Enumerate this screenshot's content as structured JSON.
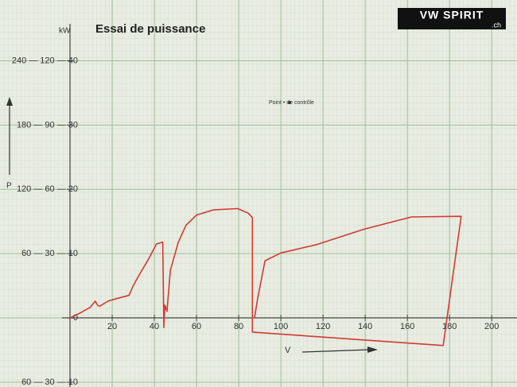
{
  "chart_data": {
    "type": "line",
    "title": "Essai de puissance",
    "unit": "kW",
    "ylabel": "P",
    "xlabel": "V",
    "annotation": "Point • de contrôle",
    "logo": [
      "VW SPIRIT",
      ".ch"
    ],
    "x": [
      0,
      5,
      9.4,
      12,
      13,
      14,
      18,
      22,
      28,
      30,
      33,
      37,
      41,
      44,
      44.5,
      45,
      46,
      47.6,
      51.3,
      55,
      60,
      68,
      79.5,
      84.5,
      86.5,
      86.5,
      177,
      185.5,
      162,
      139.5,
      117,
      100,
      92.5,
      89,
      87.5
    ],
    "series": [
      {
        "color": "#d23a32",
        "values": [
          0,
          0.8,
          1.6,
          2.6,
          2,
          1.8,
          2.6,
          3,
          3.5,
          5,
          6.8,
          9,
          11.5,
          11.8,
          -1.5,
          2,
          1,
          7.4,
          11.7,
          14.4,
          16,
          16.8,
          17,
          16.3,
          15.6,
          -2.2,
          -4.3,
          15.8,
          15.7,
          13.8,
          11.4,
          10.1,
          8.9,
          3,
          0
        ]
      }
    ],
    "xlim": [
      0,
      212
    ],
    "ylim": [
      -10.5,
      45
    ],
    "xticks": [
      20,
      40,
      60,
      80,
      100,
      120,
      140,
      160,
      180,
      200
    ],
    "yticks": [
      {
        "value": 40,
        "label": "240 — 120 — 40"
      },
      {
        "value": 30,
        "label": "180 — 90 — 30"
      },
      {
        "value": 20,
        "label": "120 — 60 — 20"
      },
      {
        "value": 10,
        "label": "60 — 30 — 10"
      },
      0,
      {
        "value": -10,
        "label": "60 — 30 — 10"
      }
    ],
    "grid": true
  }
}
